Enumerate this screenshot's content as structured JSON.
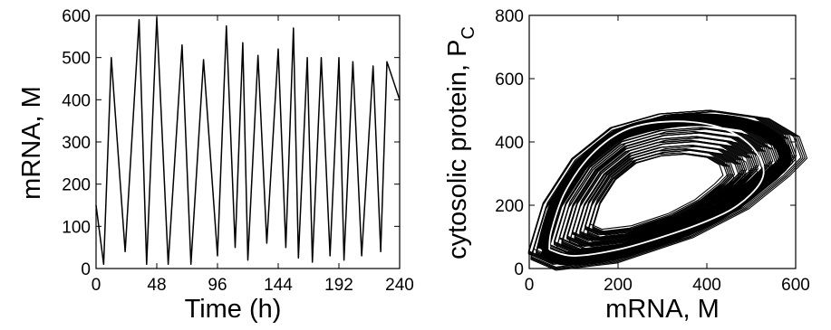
{
  "chart_data": [
    {
      "type": "line",
      "xlabel": "Time (h)",
      "ylabel": "mRNA, M",
      "xlim": [
        0,
        240
      ],
      "ylim": [
        0,
        600
      ],
      "xticks": [
        "0",
        "48",
        "96",
        "144",
        "192",
        "240"
      ],
      "yticks": [
        "0",
        "100",
        "200",
        "300",
        "400",
        "500",
        "600"
      ],
      "grid": false,
      "series": [
        {
          "color": "#000000",
          "x": [
            0,
            6,
            12,
            23,
            34,
            40,
            48,
            57,
            68,
            75,
            85,
            96,
            103,
            110,
            116,
            120,
            128,
            135,
            144,
            150,
            156,
            160,
            167,
            171,
            178,
            185,
            192,
            196,
            203,
            210,
            219,
            225,
            230,
            240
          ],
          "y": [
            150,
            10,
            500,
            40,
            590,
            10,
            595,
            10,
            530,
            10,
            495,
            30,
            575,
            50,
            535,
            20,
            505,
            60,
            520,
            50,
            570,
            25,
            500,
            15,
            500,
            30,
            500,
            20,
            490,
            30,
            480,
            40,
            490,
            400
          ]
        }
      ]
    },
    {
      "type": "line",
      "xlabel": "mRNA, M",
      "ylabel": "cytosolic protein, P",
      "ylabel_subscript": "C",
      "xlim": [
        0,
        600
      ],
      "ylim": [
        0,
        800
      ],
      "xticks": [
        "0",
        "200",
        "400",
        "600"
      ],
      "yticks": [
        "0",
        "200",
        "400",
        "600",
        "800"
      ],
      "grid": false,
      "series": [
        {
          "color": "#000000",
          "style": "stochastic trajectories",
          "x": [
            30,
            80,
            200,
            350,
            460,
            540,
            575,
            560,
            500,
            400,
            300,
            200,
            120,
            60,
            30
          ],
          "y": [
            60,
            30,
            50,
            120,
            200,
            290,
            340,
            400,
            450,
            470,
            460,
            420,
            330,
            200,
            60
          ]
        },
        {
          "color": "#ffffff",
          "style": "deterministic limit cycle",
          "x": [
            45,
            100,
            200,
            300,
            400,
            470,
            520,
            525,
            490,
            420,
            320,
            220,
            140,
            80,
            50,
            45
          ],
          "y": [
            60,
            40,
            60,
            100,
            150,
            200,
            270,
            330,
            400,
            450,
            465,
            440,
            360,
            240,
            120,
            60
          ]
        }
      ]
    }
  ]
}
